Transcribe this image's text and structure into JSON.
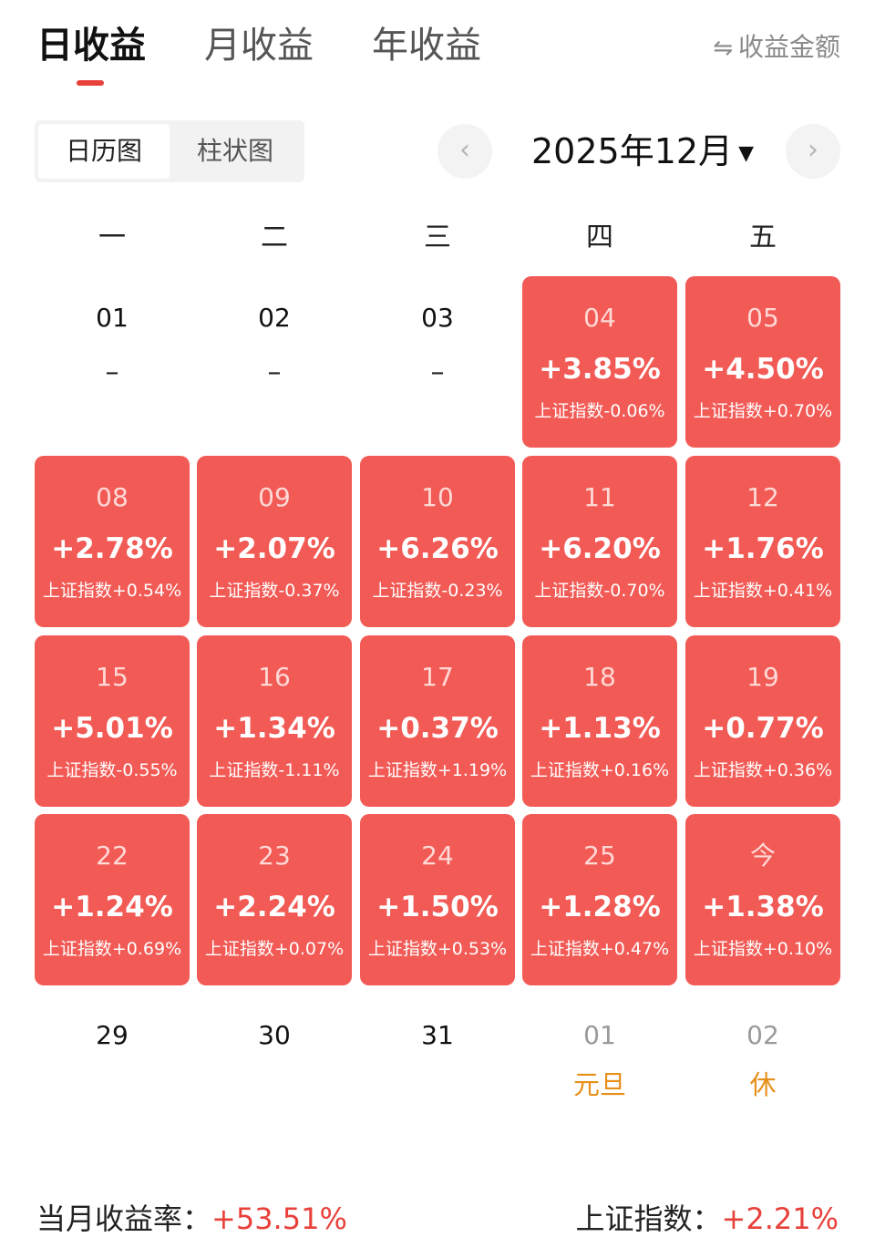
{
  "tabs": [
    {
      "label": "日收益",
      "active": true
    },
    {
      "label": "月收益",
      "active": false
    },
    {
      "label": "年收益",
      "active": false
    }
  ],
  "toggle": {
    "icon": "swap-icon",
    "label": "收益金额"
  },
  "view_switch": {
    "calendar": "日历图",
    "bar": "柱状图",
    "selected": "calendar"
  },
  "month": {
    "title": "2025年12月",
    "prev_icon": "chevron-left-icon",
    "next_icon": "chevron-right-icon"
  },
  "weekdays": [
    "一",
    "二",
    "三",
    "四",
    "五"
  ],
  "days": [
    {
      "date": "01",
      "type": "plain",
      "dash": "–"
    },
    {
      "date": "02",
      "type": "plain",
      "dash": "–"
    },
    {
      "date": "03",
      "type": "plain",
      "dash": "–"
    },
    {
      "date": "04",
      "type": "up",
      "return": "+3.85%",
      "index": "上证指数-0.06%"
    },
    {
      "date": "05",
      "type": "up",
      "return": "+4.50%",
      "index": "上证指数+0.70%"
    },
    {
      "date": "08",
      "type": "up",
      "return": "+2.78%",
      "index": "上证指数+0.54%"
    },
    {
      "date": "09",
      "type": "up",
      "return": "+2.07%",
      "index": "上证指数-0.37%"
    },
    {
      "date": "10",
      "type": "up",
      "return": "+6.26%",
      "index": "上证指数-0.23%"
    },
    {
      "date": "11",
      "type": "up",
      "return": "+6.20%",
      "index": "上证指数-0.70%"
    },
    {
      "date": "12",
      "type": "up",
      "return": "+1.76%",
      "index": "上证指数+0.41%"
    },
    {
      "date": "15",
      "type": "up",
      "return": "+5.01%",
      "index": "上证指数-0.55%"
    },
    {
      "date": "16",
      "type": "up",
      "return": "+1.34%",
      "index": "上证指数-1.11%"
    },
    {
      "date": "17",
      "type": "up",
      "return": "+0.37%",
      "index": "上证指数+1.19%"
    },
    {
      "date": "18",
      "type": "up",
      "return": "+1.13%",
      "index": "上证指数+0.16%"
    },
    {
      "date": "19",
      "type": "up",
      "return": "+0.77%",
      "index": "上证指数+0.36%"
    },
    {
      "date": "22",
      "type": "up",
      "return": "+1.24%",
      "index": "上证指数+0.69%"
    },
    {
      "date": "23",
      "type": "up",
      "return": "+2.24%",
      "index": "上证指数+0.07%"
    },
    {
      "date": "24",
      "type": "up",
      "return": "+1.50%",
      "index": "上证指数+0.53%"
    },
    {
      "date": "25",
      "type": "up",
      "return": "+1.28%",
      "index": "上证指数+0.47%"
    },
    {
      "date": "今",
      "type": "up",
      "return": "+1.38%",
      "index": "上证指数+0.10%"
    },
    {
      "date": "29",
      "type": "plain"
    },
    {
      "date": "30",
      "type": "plain"
    },
    {
      "date": "31",
      "type": "plain"
    },
    {
      "date": "01",
      "type": "next",
      "holiday": "元旦"
    },
    {
      "date": "02",
      "type": "next",
      "holiday": "休"
    }
  ],
  "footer": {
    "month_return_label": "当月收益率：",
    "month_return_value": "+53.51%",
    "index_label": "上证指数：",
    "index_value": "+2.21%"
  },
  "colors": {
    "up": "#f25a55",
    "accent": "#e8403a",
    "holiday": "#e6901a"
  }
}
